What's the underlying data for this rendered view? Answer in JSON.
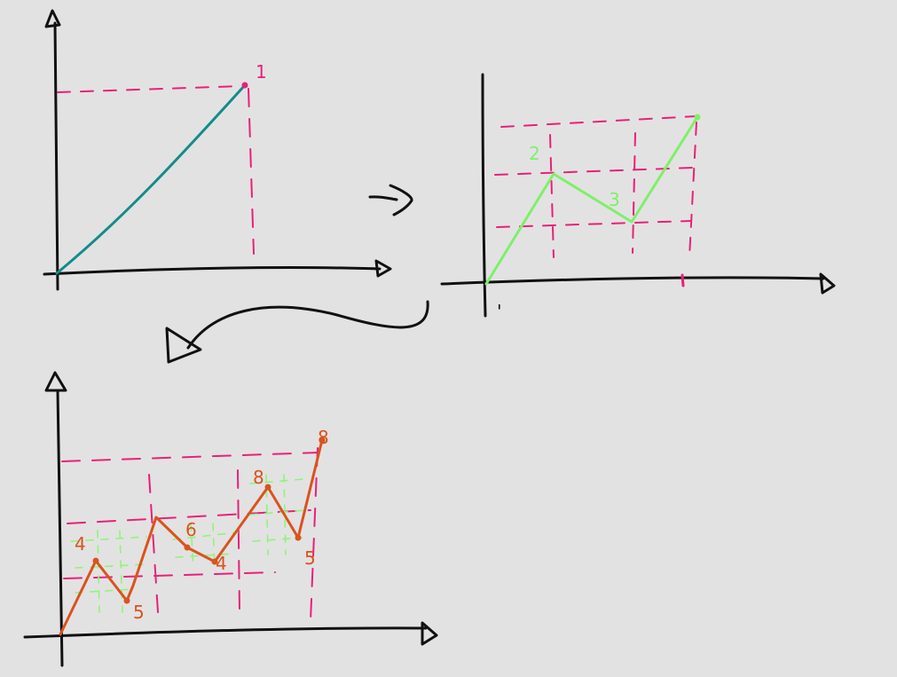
{
  "colors": {
    "background": "#e3e2e2",
    "ink": "#111111",
    "guide": "#e8207a",
    "stage1_line": "#128c8c",
    "stage2_line": "#7ef06a",
    "stage2_grid": "#8ef57a",
    "stage3_line": "#d9531e"
  },
  "arrows": {
    "stage1_to_stage2": "right-arrow",
    "stage2_to_stage3": "curved-arrow-down-left"
  },
  "stage1": {
    "labels": {
      "end": "1"
    }
  },
  "stage2": {
    "labels": {
      "peak": "2",
      "valley": "3"
    },
    "ticks": {
      "x_start": "'",
      "x_end": "1"
    }
  },
  "stage3": {
    "labels": {
      "p1": "4",
      "p2": "5",
      "p3": "6",
      "p4": "4",
      "p5": "8",
      "p6": "5",
      "p7": "8"
    }
  }
}
